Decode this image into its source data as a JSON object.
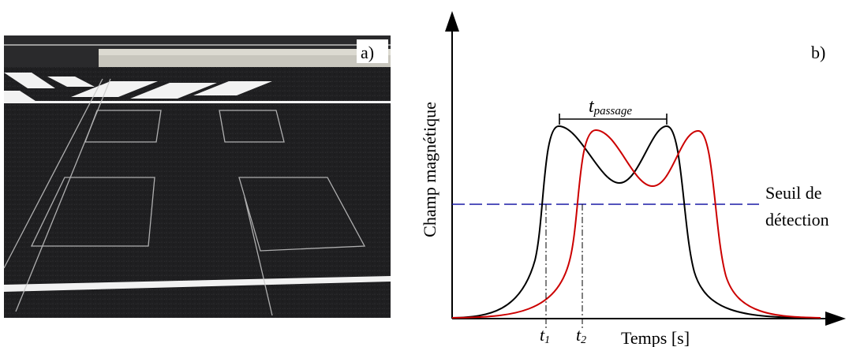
{
  "panel_a": {
    "label": "a)"
  },
  "panel_b": {
    "label": "b)",
    "y_axis_label": "Champ magnétique",
    "x_axis_label": "Temps [s]",
    "threshold_label_line1": "Seuil de",
    "threshold_label_line2": "détection",
    "t_passage_base": "t",
    "t_passage_sub": "passage",
    "t1_base": "t",
    "t1_sub": "1",
    "t2_base": "t",
    "t2_sub": "2"
  },
  "colors": {
    "signal_1": "#000000",
    "signal_2": "#cc0000",
    "threshold": "#1a1aa6"
  }
}
